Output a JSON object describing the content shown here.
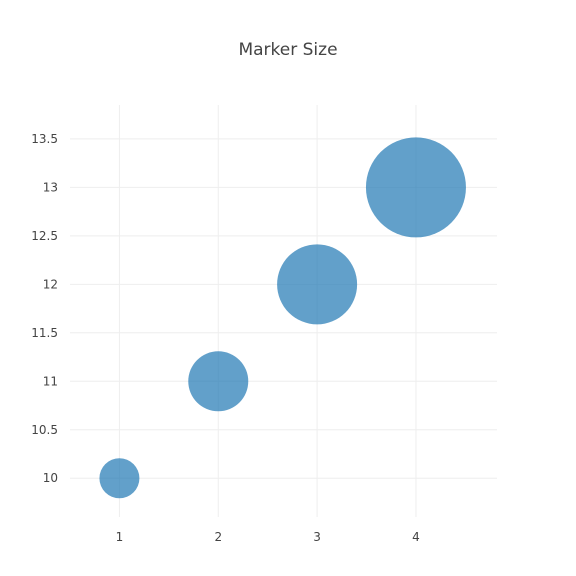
{
  "chart_data": {
    "type": "scatter",
    "title": "Marker Size",
    "xlabel": "",
    "ylabel": "",
    "x": [
      1,
      2,
      3,
      4
    ],
    "y": [
      10,
      11,
      12,
      13
    ],
    "marker_size": [
      40,
      60,
      80,
      100
    ],
    "x_ticks": [
      "1",
      "2",
      "3",
      "4"
    ],
    "y_ticks": [
      "10",
      "10.5",
      "11",
      "11.5",
      "12",
      "12.5",
      "13",
      "13.5"
    ],
    "xlim": [
      0.5,
      4.82
    ],
    "ylim": [
      9.6,
      13.85
    ],
    "grid": true,
    "marker_color": "#1f77b4",
    "marker_opacity": 0.7
  }
}
